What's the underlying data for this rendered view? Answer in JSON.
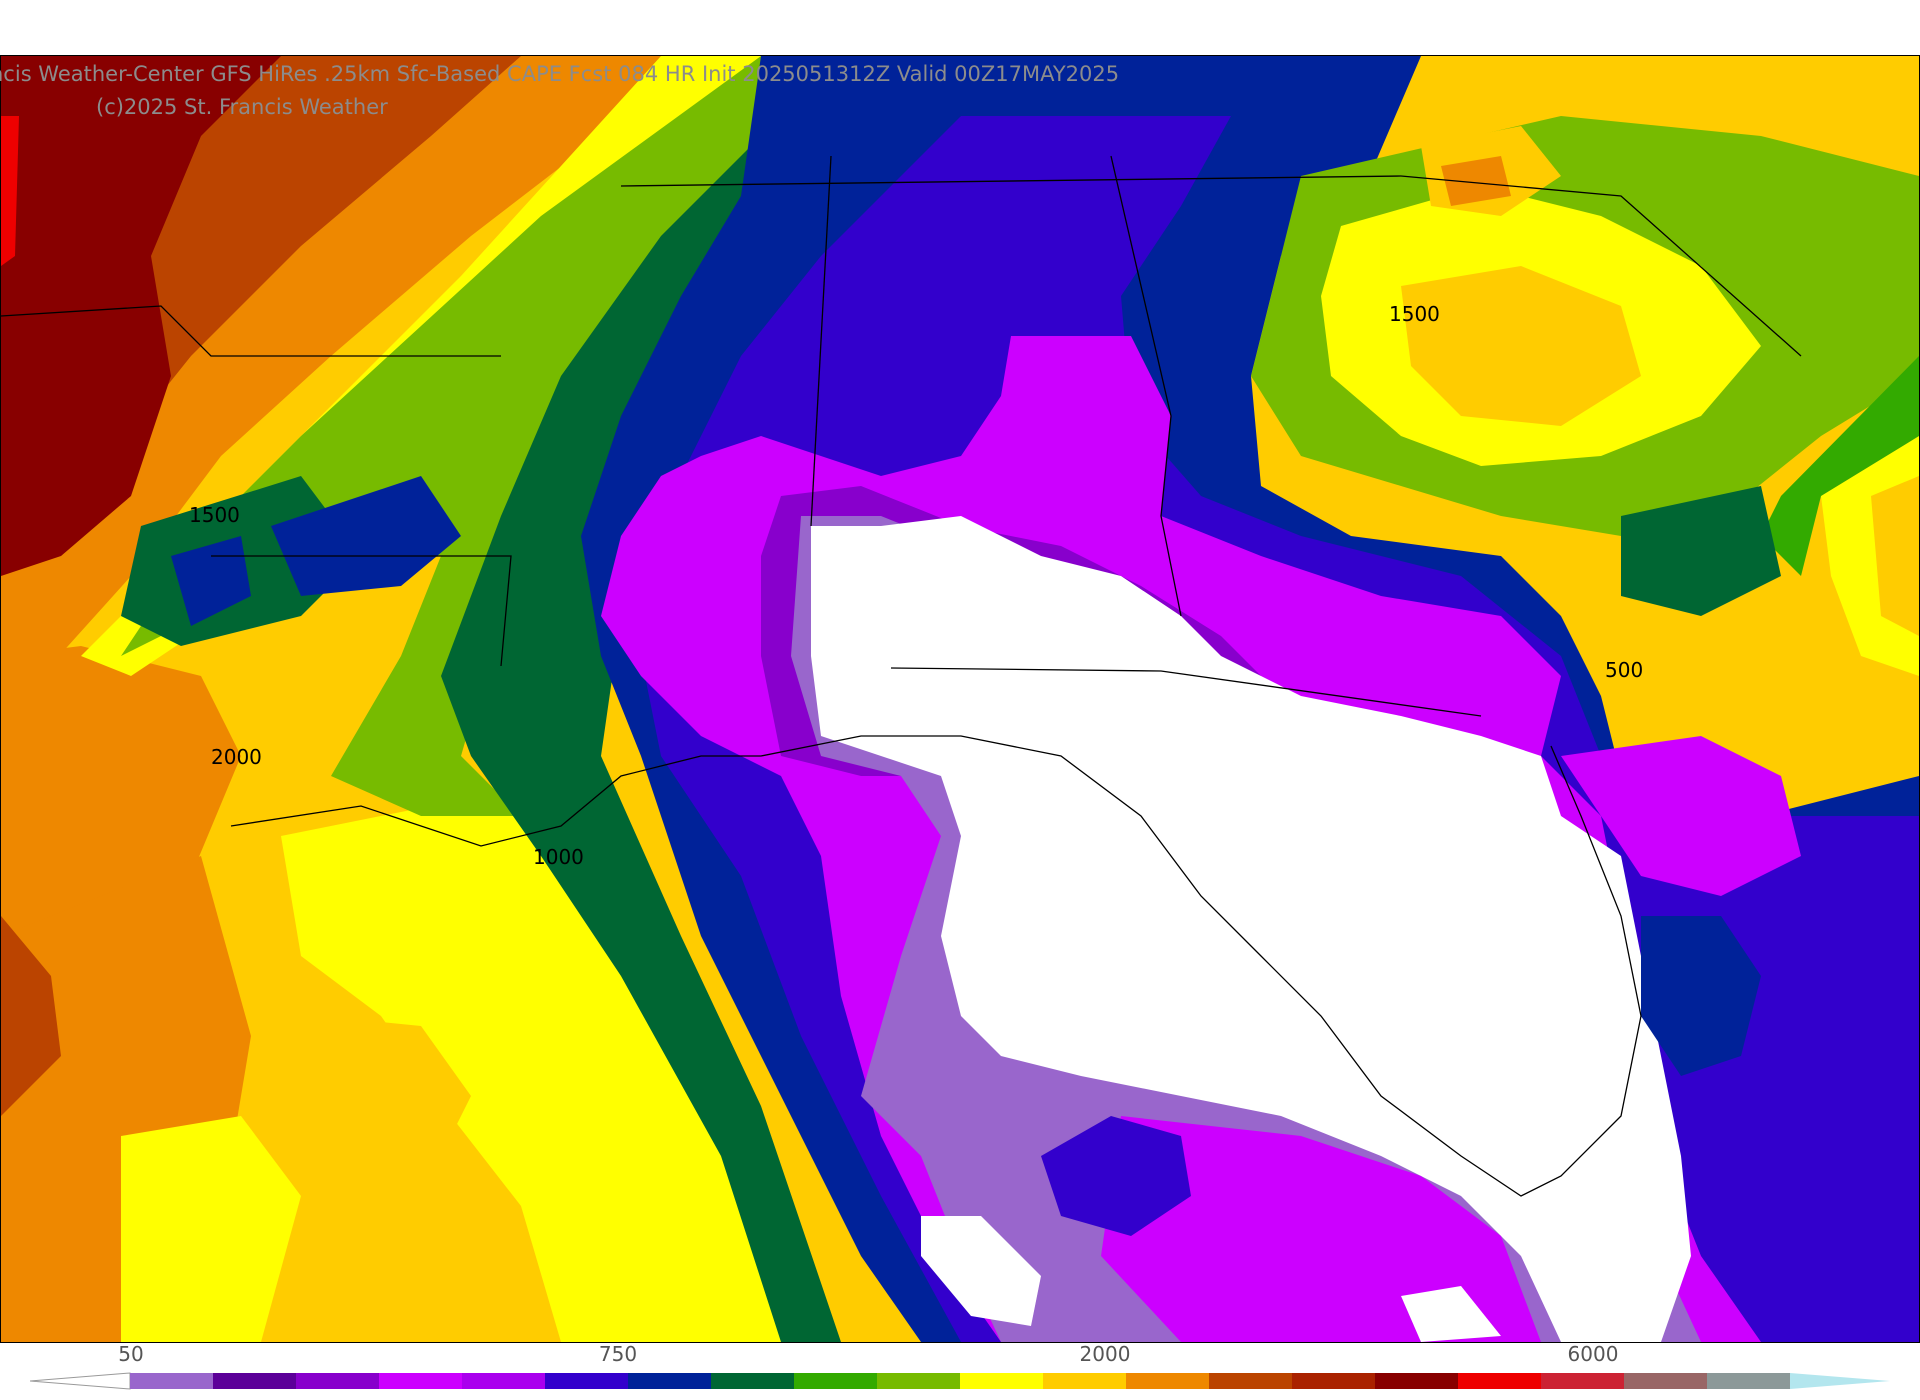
{
  "title": {
    "line1": "ncis Weather-Center GFS HiRes .25km Sfc-Based CAPE  Fcst 084 HR Init 2025051312Z  Valid 00Z17MAY2025",
    "line2": "(c)2025 St. Francis Weather"
  },
  "contour_labels": [
    {
      "text": "1500"
    },
    {
      "text": "2000"
    },
    {
      "text": "1000"
    },
    {
      "text": "1500"
    },
    {
      "text": "500"
    }
  ],
  "colorbar": {
    "tick_labels": [
      "50",
      "750",
      "2000",
      "6000"
    ],
    "colors": [
      "#9966cc",
      "#5c0099",
      "#8800cc",
      "#cc00ff",
      "#aa00ee",
      "#3300cc",
      "#002299",
      "#006633",
      "#33aa00",
      "#77bb00",
      "#ffff00",
      "#ffcc00",
      "#ee8800",
      "#bb4400",
      "#aa2200",
      "#880000",
      "#ee0000",
      "#cc2233",
      "#996666",
      "#8c9999",
      "#b3e6ee"
    ]
  },
  "legend_colors": {
    "white": "#ffffff",
    "lavender": "#9966cc",
    "purple": "#5c0099",
    "magenta": "#cc00ff",
    "violet": "#8800cc",
    "blue": "#3300cc",
    "navy": "#002299",
    "dkgreen": "#006633",
    "green": "#33aa00",
    "ltgreen": "#77bb00",
    "yellow": "#ffff00",
    "gold": "#ffcc00",
    "orange": "#ee8800",
    "rust": "#bb4400",
    "brick": "#992200",
    "maroon": "#880000",
    "red": "#ee0000"
  }
}
